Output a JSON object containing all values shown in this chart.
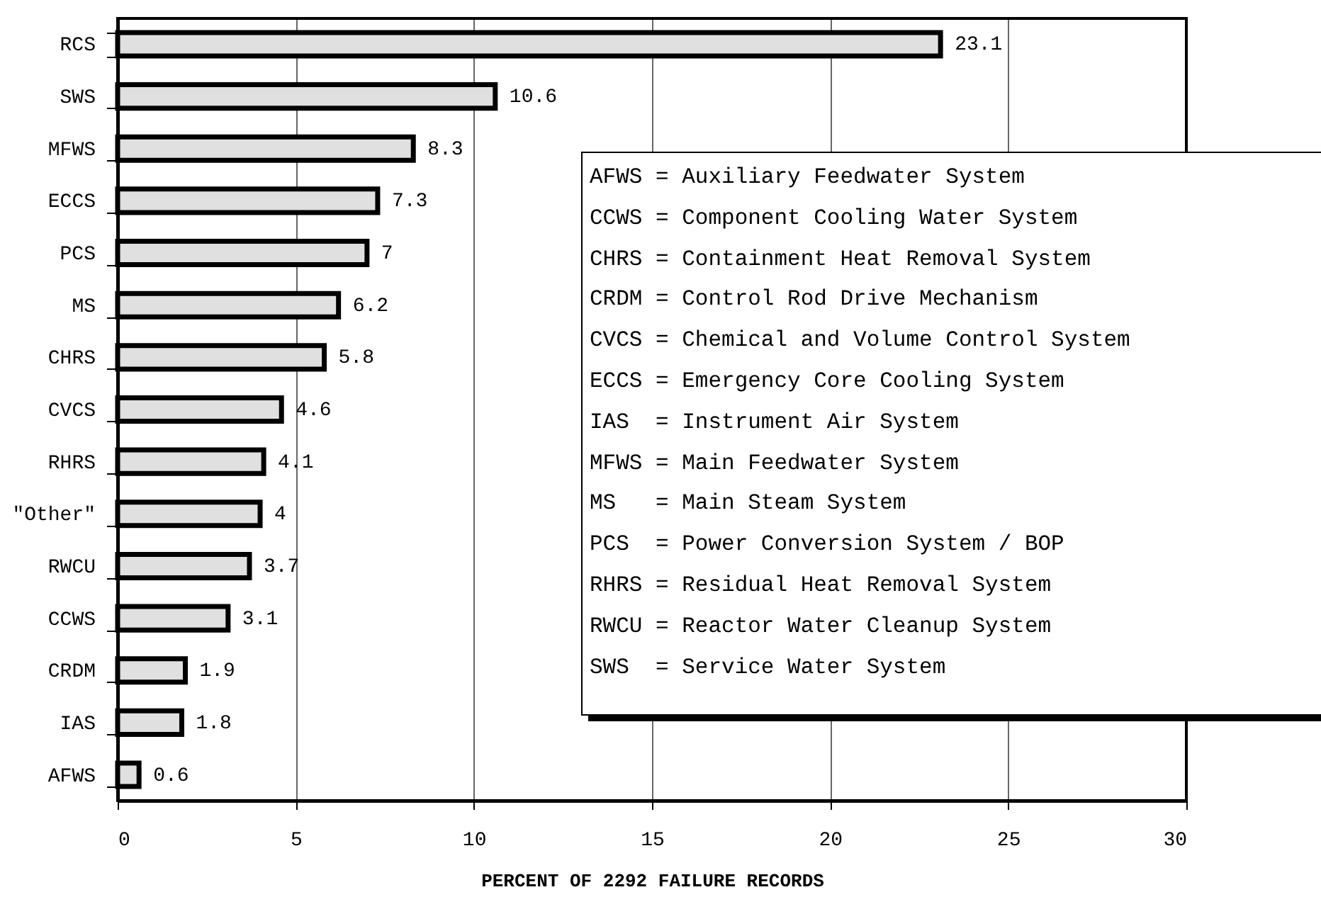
{
  "chart_data": {
    "type": "bar",
    "orientation": "horizontal",
    "xlabel": "PERCENT OF 2292 FAILURE RECORDS",
    "categories": [
      "RCS",
      "SWS",
      "MFWS",
      "ECCS",
      "PCS",
      "MS",
      "CHRS",
      "CVCS",
      "RHRS",
      "\"Other\"",
      "RWCU",
      "CCWS",
      "CRDM",
      "IAS",
      "AFWS"
    ],
    "values": [
      23.1,
      10.6,
      8.3,
      7.3,
      7,
      6.2,
      5.8,
      4.6,
      4.1,
      4,
      3.7,
      3.1,
      1.9,
      1.8,
      0.6
    ],
    "color": "#e0e0e0",
    "xlim": [
      0,
      30
    ],
    "xticks": [
      0,
      5,
      10,
      15,
      20,
      25,
      30
    ],
    "grid": "x",
    "data_labels": true,
    "annotations": [
      "AFWS = Auxiliary Feedwater System",
      "CCWS = Component Cooling Water System",
      "CHRS = Containment Heat Removal System",
      "CRDM = Control Rod Drive Mechanism",
      "CVCS = Chemical and Volume Control System",
      "ECCS = Emergency Core Cooling System",
      "IAS  = Instrument Air System",
      "MFWS = Main Feedwater System",
      "MS   = Main Steam System",
      "PCS  = Power Conversion System / BOP",
      "RHRS = Residual Heat Removal System",
      "RWCU = Reactor Water Cleanup System",
      "SWS  = Service Water System"
    ]
  }
}
